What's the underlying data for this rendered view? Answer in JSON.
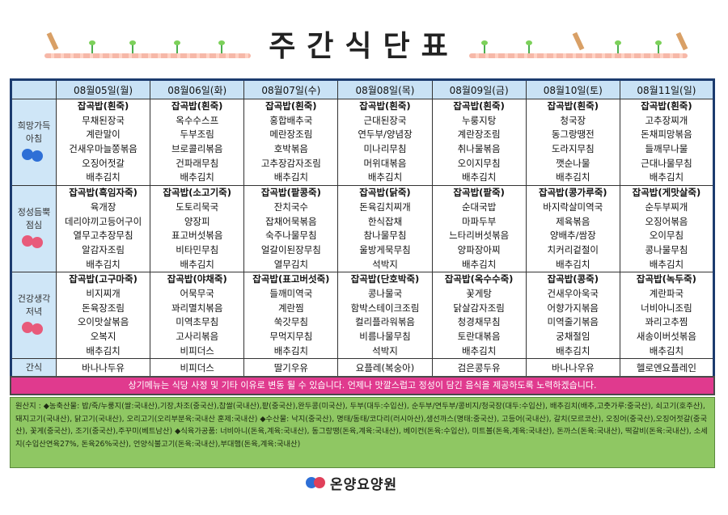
{
  "title": "주간식단표",
  "days": [
    "08월05일(월)",
    "08월06일(화)",
    "08월07일(수)",
    "08월08일(목)",
    "08월09일(금)",
    "08월10일(토)",
    "08월11일(일)"
  ],
  "rows": [
    {
      "label_lines": [
        "희망가득",
        "아침"
      ],
      "flower": "blue",
      "cells": [
        [
          "잡곡밥(흰죽)",
          "무채된장국",
          "계란말이",
          "건새우마늘쫑볶음",
          "오징어젓갈",
          "배추김치"
        ],
        [
          "잡곡밥(흰죽)",
          "옥수수스프",
          "두부조림",
          "브로콜리볶음",
          "건파래무침",
          "배추김치"
        ],
        [
          "잡곡밥(흰죽)",
          "홍합배추국",
          "메란장조림",
          "호박볶음",
          "고추장감자조림",
          "배추김치"
        ],
        [
          "잡곡밥(흰죽)",
          "근대된장국",
          "연두부/양념장",
          "미나리무침",
          "머위대볶음",
          "배추김치"
        ],
        [
          "잡곡밥(흰죽)",
          "누룽지탕",
          "계란장조림",
          "취나물볶음",
          "오이지무침",
          "배추김치"
        ],
        [
          "잡곡밥(흰죽)",
          "청국장",
          "동그랑땡전",
          "도라지무침",
          "깻순나물",
          "배추김치"
        ],
        [
          "잡곡밥(흰죽)",
          "고추장찌개",
          "돈채피망볶음",
          "들깨무나물",
          "근대나물무침",
          "배추김치"
        ]
      ]
    },
    {
      "label_lines": [
        "정성듬뿍",
        "점심"
      ],
      "flower": "red",
      "cells": [
        [
          "잡곡밥(흑임자죽)",
          "육개장",
          "데리야끼고등어구이",
          "열무고추장무침",
          "알감자조림",
          "배추김치"
        ],
        [
          "잡곡밥(소고기죽)",
          "도토리묵국",
          "양장피",
          "표고버섯볶음",
          "비타민무침",
          "배추김치"
        ],
        [
          "잡곡밥(팥콩죽)",
          "잔치국수",
          "잡채어묵볶음",
          "숙주나물무침",
          "얼갈이된장무침",
          "열무김치"
        ],
        [
          "잡곡밥(닭죽)",
          "돈육김치찌개",
          "한식잡채",
          "참나물무침",
          "울방게묵무침",
          "석박지"
        ],
        [
          "잡곡밥(팥죽)",
          "순대국밥",
          "마파두부",
          "느타리버섯볶음",
          "양파장아찌",
          "배추김치"
        ],
        [
          "잡곡밥(콩가루죽)",
          "바지락살미역국",
          "제육볶음",
          "양배추/쌈장",
          "치커리겉절이",
          "배추김치"
        ],
        [
          "잡곡밥(게맛살죽)",
          "순두부찌개",
          "오징어볶음",
          "오이무침",
          "콩나물무침",
          "배추김치"
        ]
      ]
    },
    {
      "label_lines": [
        "건강생각",
        "저녁"
      ],
      "flower": "red",
      "cells": [
        [
          "잡곡밥(고구마죽)",
          "비지찌개",
          "돈육장조림",
          "오이맛살볶음",
          "오복지",
          "배추김치"
        ],
        [
          "잡곡밥(야채죽)",
          "어묵무국",
          "꽈리멸치볶음",
          "미역초무침",
          "고사리볶음",
          "비피더스"
        ],
        [
          "잡곡밥(표고버섯죽)",
          "들깨미역국",
          "계란찜",
          "쑥갓무침",
          "무먹지무침",
          "배추김치"
        ],
        [
          "잡곡밥(단호박죽)",
          "콩나물국",
          "함박스테이크조림",
          "컬리플라워볶음",
          "비름나물무침",
          "석박지"
        ],
        [
          "잡곡밥(옥수수죽)",
          "꽃게탕",
          "닭살감자조림",
          "청경채무침",
          "토란대볶음",
          "배추김치"
        ],
        [
          "잡곡밥(콩죽)",
          "건새우아욱국",
          "어향가지볶음",
          "미역줄기볶음",
          "궁채절임",
          "배추김치"
        ],
        [
          "잡곡밥(녹두죽)",
          "계란파국",
          "너비아니조림",
          "꽈리고추찜",
          "새송이버섯볶음",
          "배추김치"
        ]
      ]
    }
  ],
  "snack": {
    "label": "간식",
    "items": [
      "바나나두유",
      "비피더스",
      "딸기우유",
      "요플레(복숭아)",
      "검은콩두유",
      "바나나우유",
      "헬로엔요플레인"
    ]
  },
  "notice": "상기메뉴는 식당 사정 및 기타 이유로 변동 될 수 있습니다. 언제나 맛깔스럽고 정성이 담긴 음식을 제공하도록 노력하겠습니다.",
  "origin_text": "원산지 : ◆농축산물: 밥/죽/누룽지(쌀:국내산),기장,차조(중국산),찹쌀(국내산),팥(중국산),완두콩(미국산), 두부(대두:수입산), 순두부/연두부/콩비지/청국장(대두:수입산), 배추김치(배추,고춧가루:중국산), 쇠고기(호주산), 돼지고기(국내산), 닭고기(국내산), 오리고기(오리부분육:국내산 훈제:국내산) ◆수산물: 낙지(중국산), 명태/동태/코다리(러시아산),생선까스(명태:중국산), 고등어(국내산), 갈치(모르코산), 오징어(중국산),오징어젓갈(중국산), 꽃게(중국산), 조기(중국산),주꾸미(베트남산) ◆식육가공품: 너비아니(돈육,계육:국내산), 동그랑땡(돈육,계육:국내산), 베이컨(돈육:수입산), 미트볼(돈육,계육:국내산), 돈까스(돈육:국내산), 떡갈비(돈육:국내산), 소세지(수입산연육27%, 돈육26%국산), 언양식불고기(돈육:국내산),부대햄(돈육,계육:국내산)",
  "logo_text": "온양요양원"
}
